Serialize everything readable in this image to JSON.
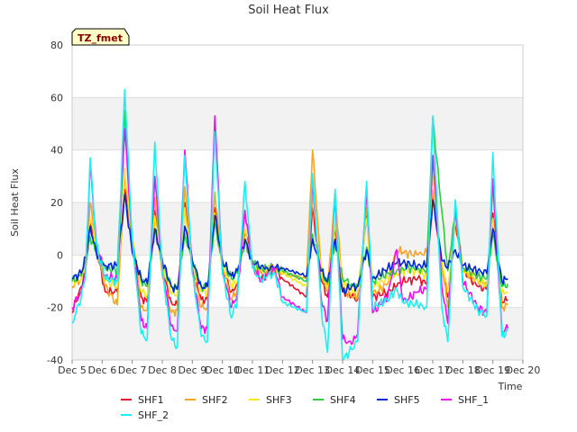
{
  "chart_data": {
    "type": "line",
    "title": "Soil Heat Flux",
    "xlabel": "Time",
    "ylabel": "Soil Heat Flux",
    "station_badge": "TZ_fmet",
    "xlim": [
      5,
      20
    ],
    "ylim": [
      -40,
      80
    ],
    "x_ticks": [
      {
        "label": "Dec 5",
        "value": 5
      },
      {
        "label": "Dec 6",
        "value": 6
      },
      {
        "label": "Dec 7",
        "value": 7
      },
      {
        "label": "Dec 8",
        "value": 8
      },
      {
        "label": "Dec 9",
        "value": 9
      },
      {
        "label": "Dec 10",
        "value": 10
      },
      {
        "label": "Dec 11",
        "value": 11
      },
      {
        "label": "Dec 12",
        "value": 12
      },
      {
        "label": "Dec 13",
        "value": 13
      },
      {
        "label": "Dec 14",
        "value": 14
      },
      {
        "label": "Dec 15",
        "value": 15
      },
      {
        "label": "Dec 16",
        "value": 16
      },
      {
        "label": "Dec 17",
        "value": 17
      },
      {
        "label": "Dec 18",
        "value": 18
      },
      {
        "label": "Dec 19",
        "value": 19
      },
      {
        "label": "Dec 20",
        "value": 20
      }
    ],
    "y_ticks": [
      {
        "label": "-40",
        "value": -40
      },
      {
        "label": "-20",
        "value": -20
      },
      {
        "label": "0",
        "value": 0
      },
      {
        "label": "20",
        "value": 20
      },
      {
        "label": "40",
        "value": 40
      },
      {
        "label": "60",
        "value": 60
      },
      {
        "label": "80",
        "value": 80
      }
    ],
    "grid": true,
    "background_bands": "alternating light grey",
    "legend_position": "bottom",
    "series": [
      {
        "name": "SHF1",
        "color": "#e8112d",
        "order": 0,
        "x": [
          5.0,
          5.3,
          5.45,
          5.6,
          5.8,
          6.1,
          6.5,
          6.75,
          7.0,
          7.3,
          7.5,
          7.75,
          8.0,
          8.3,
          8.5,
          8.75,
          9.0,
          9.3,
          9.5,
          9.75,
          10.0,
          10.3,
          10.5,
          10.75,
          11.0,
          11.3,
          11.5,
          11.75,
          12.0,
          12.8,
          13.0,
          13.3,
          13.5,
          13.75,
          14.0,
          14.3,
          14.5,
          14.8,
          15.0,
          15.5,
          15.8,
          16.0,
          16.5,
          16.8,
          17.0,
          17.3,
          17.5,
          17.75,
          18.0,
          18.5,
          18.8,
          19.0,
          19.3,
          19.5
        ],
        "y": [
          -22,
          -12,
          -5,
          12,
          3,
          -14,
          -14,
          25,
          5,
          -16,
          -18,
          17,
          -6,
          -18,
          -19,
          20,
          -5,
          -17,
          -17,
          18,
          -5,
          -14,
          -11,
          9,
          -4,
          -9,
          -7,
          -5,
          -9,
          -16,
          18,
          -10,
          -16,
          10,
          -14,
          -16,
          -17,
          15,
          -16,
          -14,
          -12,
          -10,
          -9,
          -11,
          22,
          -3,
          -16,
          13,
          -6,
          -12,
          -13,
          16,
          -18,
          -17
        ]
      },
      {
        "name": "SHF2",
        "color": "#f5a623",
        "order": 1,
        "x": [
          5.0,
          5.3,
          5.45,
          5.6,
          5.8,
          6.1,
          6.5,
          6.75,
          7.0,
          7.3,
          7.5,
          7.75,
          8.0,
          8.3,
          8.5,
          8.75,
          9.0,
          9.3,
          9.5,
          9.75,
          10.0,
          10.3,
          10.5,
          10.75,
          11.0,
          11.3,
          11.5,
          11.75,
          12.0,
          12.8,
          13.0,
          13.3,
          13.5,
          13.75,
          14.0,
          14.3,
          14.5,
          14.8,
          15.0,
          15.5,
          15.8,
          16.0,
          16.5,
          16.8,
          17.0,
          17.3,
          17.5,
          17.75,
          18.0,
          18.5,
          18.8,
          19.0,
          19.3,
          19.5
        ],
        "y": [
          -12,
          -9,
          -3,
          20,
          4,
          -12,
          -19,
          30,
          6,
          -20,
          -21,
          22,
          -8,
          -22,
          -21,
          26,
          -6,
          -20,
          -20,
          24,
          -6,
          -17,
          -13,
          16,
          -3,
          -7,
          -6,
          -5,
          -7,
          -9,
          40,
          -8,
          -14,
          24,
          -13,
          -16,
          -16,
          18,
          -15,
          -11,
          2,
          1,
          0,
          1,
          25,
          -3,
          -20,
          18,
          -6,
          -10,
          -11,
          26,
          -20,
          -19
        ]
      },
      {
        "name": "SHF3",
        "color": "#f8e71c",
        "order": 2,
        "x": [
          5.0,
          5.3,
          5.45,
          5.6,
          5.8,
          6.1,
          6.5,
          6.75,
          7.0,
          7.3,
          7.5,
          7.75,
          8.0,
          8.3,
          8.5,
          8.75,
          9.0,
          9.3,
          9.5,
          9.75,
          10.0,
          10.3,
          10.5,
          10.75,
          11.0,
          11.3,
          11.5,
          11.75,
          12.0,
          12.8,
          13.0,
          13.3,
          13.5,
          13.75,
          14.0,
          14.3,
          14.5,
          14.8,
          15.0,
          15.5,
          15.8,
          16.0,
          16.5,
          16.8,
          17.0,
          17.3,
          17.5,
          17.75,
          18.0,
          18.5,
          18.8,
          19.0,
          19.3,
          19.5
        ],
        "y": [
          -10,
          -9,
          -4,
          14,
          4,
          -10,
          -12,
          33,
          6,
          -14,
          -15,
          15,
          -4,
          -15,
          -15,
          18,
          -4,
          -14,
          -14,
          16,
          -4,
          -12,
          -10,
          10,
          -4,
          -6,
          -5,
          -5,
          -7,
          -12,
          22,
          -8,
          -13,
          12,
          -11,
          -13,
          -14,
          14,
          -12,
          -9,
          -7,
          -6,
          -6,
          -8,
          30,
          -2,
          -14,
          13,
          -5,
          -10,
          -11,
          14,
          -14,
          -14
        ]
      },
      {
        "name": "SHF4",
        "color": "#2ecc40",
        "order": 3,
        "x": [
          5.0,
          5.3,
          5.45,
          5.6,
          5.8,
          6.1,
          6.5,
          6.75,
          7.0,
          7.3,
          7.5,
          7.75,
          8.0,
          8.3,
          8.5,
          8.75,
          9.0,
          9.3,
          9.5,
          9.75,
          10.0,
          10.3,
          10.5,
          10.75,
          11.0,
          11.3,
          11.5,
          11.75,
          12.0,
          12.8,
          13.0,
          13.3,
          13.5,
          13.75,
          14.0,
          14.3,
          14.5,
          14.8,
          15.0,
          15.5,
          15.8,
          16.0,
          16.5,
          16.8,
          17.0,
          17.3,
          17.5,
          17.75,
          18.0,
          18.5,
          18.8,
          19.0,
          19.3,
          19.5
        ],
        "y": [
          -10,
          -8,
          -2,
          7,
          1,
          -5,
          -6,
          55,
          3,
          -10,
          -12,
          10,
          -3,
          -12,
          -13,
          8,
          -3,
          -12,
          -12,
          12,
          -3,
          -9,
          -7,
          5,
          -3,
          -5,
          -5,
          -5,
          -6,
          -10,
          8,
          -6,
          -11,
          5,
          -9,
          -11,
          -12,
          3,
          -10,
          -7,
          -6,
          -5,
          -5,
          -6,
          52,
          17,
          -6,
          16,
          -5,
          -8,
          -9,
          8,
          -12,
          -11
        ]
      },
      {
        "name": "SHF5",
        "color": "#0026d6",
        "order": 4,
        "x": [
          5.0,
          5.3,
          5.45,
          5.6,
          5.8,
          6.1,
          6.5,
          6.75,
          7.0,
          7.3,
          7.5,
          7.75,
          8.0,
          8.3,
          8.5,
          8.75,
          9.0,
          9.3,
          9.5,
          9.75,
          10.0,
          10.3,
          10.5,
          10.75,
          11.0,
          11.3,
          11.5,
          11.75,
          12.0,
          12.8,
          13.0,
          13.3,
          13.5,
          13.75,
          14.0,
          14.3,
          14.5,
          14.8,
          15.0,
          15.5,
          15.8,
          16.0,
          16.5,
          16.8,
          17.0,
          17.3,
          17.5,
          17.75,
          18.0,
          18.5,
          18.8,
          19.0,
          19.3,
          19.5
        ],
        "y": [
          -9,
          -7,
          -1,
          11,
          1,
          -4,
          -4,
          23,
          1,
          -9,
          -11,
          10,
          -2,
          -12,
          -13,
          11,
          -2,
          -12,
          -12,
          15,
          -2,
          -8,
          -6,
          6,
          -3,
          -4,
          -5,
          -5,
          -5,
          -8,
          6,
          -6,
          -10,
          6,
          -14,
          -12,
          -12,
          2,
          -9,
          -5,
          -3,
          -3,
          -4,
          -4,
          21,
          -2,
          -5,
          2,
          -4,
          -6,
          -7,
          10,
          -10,
          -9
        ]
      },
      {
        "name": "SHF_1",
        "color": "#ee10ee",
        "order": 5,
        "x": [
          5.0,
          5.3,
          5.45,
          5.6,
          5.8,
          6.1,
          6.5,
          6.75,
          7.0,
          7.3,
          7.5,
          7.75,
          8.0,
          8.3,
          8.5,
          8.75,
          9.0,
          9.3,
          9.5,
          9.75,
          10.0,
          10.3,
          10.5,
          10.75,
          11.0,
          11.3,
          11.5,
          11.75,
          12.0,
          12.8,
          13.0,
          13.3,
          13.5,
          13.75,
          14.0,
          14.3,
          14.5,
          14.8,
          15.0,
          15.5,
          15.8,
          16.0,
          16.5,
          16.8,
          17.0,
          17.3,
          17.5,
          17.75,
          18.0,
          18.5,
          18.8,
          19.0,
          19.3,
          19.5
        ],
        "y": [
          -20,
          -14,
          -6,
          35,
          5,
          -8,
          -9,
          48,
          6,
          -25,
          -28,
          30,
          -5,
          -27,
          -29,
          40,
          -6,
          -28,
          -28,
          53,
          -6,
          -20,
          -15,
          17,
          -4,
          -10,
          -7,
          -6,
          -16,
          -22,
          28,
          -18,
          -25,
          22,
          -32,
          -34,
          -30,
          25,
          -22,
          -16,
          2,
          -18,
          -14,
          -13,
          38,
          -12,
          -26,
          19,
          -10,
          -20,
          -22,
          29,
          -29,
          -28
        ]
      },
      {
        "name": "SHF_2",
        "color": "#18f0f8",
        "order": 6,
        "x": [
          5.0,
          5.3,
          5.45,
          5.6,
          5.8,
          6.1,
          6.5,
          6.75,
          7.0,
          7.3,
          7.5,
          7.75,
          8.0,
          8.3,
          8.5,
          8.75,
          9.0,
          9.3,
          9.5,
          9.75,
          10.0,
          10.3,
          10.5,
          10.75,
          11.0,
          11.3,
          11.5,
          11.75,
          12.0,
          12.8,
          13.0,
          13.3,
          13.5,
          13.75,
          14.0,
          14.3,
          14.5,
          14.8,
          15.0,
          15.5,
          15.8,
          16.0,
          16.5,
          16.8,
          17.0,
          17.3,
          17.5,
          17.75,
          18.0,
          18.5,
          18.8,
          19.0,
          19.3,
          19.5
        ],
        "y": [
          -26,
          -16,
          -7,
          37,
          4,
          -9,
          -10,
          63,
          6,
          -30,
          -32,
          43,
          -6,
          -32,
          -35,
          38,
          -7,
          -31,
          -33,
          47,
          -7,
          -24,
          -17,
          28,
          -5,
          -10,
          -8,
          -7,
          -18,
          -22,
          31,
          -22,
          -37,
          25,
          -40,
          -36,
          -33,
          28,
          -20,
          -17,
          -13,
          -18,
          -19,
          -20,
          53,
          -20,
          -33,
          21,
          -12,
          -21,
          -23,
          39,
          -31,
          -29
        ]
      }
    ]
  }
}
